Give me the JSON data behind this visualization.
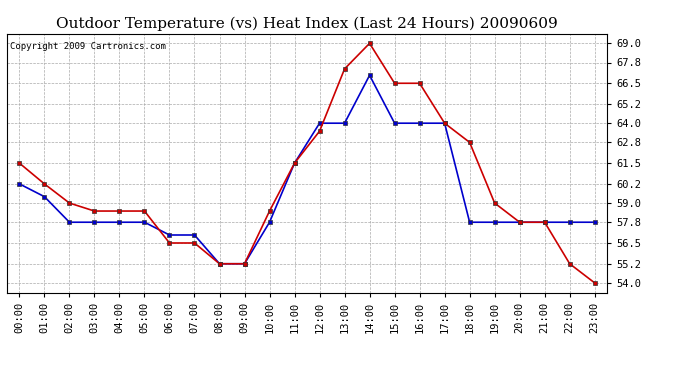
{
  "title": "Outdoor Temperature (vs) Heat Index (Last 24 Hours) 20090609",
  "copyright_text": "Copyright 2009 Cartronics.com",
  "x_labels": [
    "00:00",
    "01:00",
    "02:00",
    "03:00",
    "04:00",
    "05:00",
    "06:00",
    "07:00",
    "08:00",
    "09:00",
    "10:00",
    "11:00",
    "12:00",
    "13:00",
    "14:00",
    "15:00",
    "16:00",
    "17:00",
    "18:00",
    "19:00",
    "20:00",
    "21:00",
    "22:00",
    "23:00"
  ],
  "red_data": [
    61.5,
    60.2,
    59.0,
    58.5,
    58.5,
    58.5,
    56.5,
    56.5,
    55.2,
    55.2,
    58.5,
    61.5,
    63.5,
    67.4,
    69.0,
    66.5,
    66.5,
    64.0,
    62.8,
    59.0,
    57.8,
    57.8,
    55.2,
    54.0
  ],
  "blue_data": [
    60.2,
    59.4,
    57.8,
    57.8,
    57.8,
    57.8,
    57.0,
    57.0,
    55.2,
    55.2,
    57.8,
    61.5,
    64.0,
    64.0,
    67.0,
    64.0,
    64.0,
    64.0,
    57.8,
    57.8,
    57.8,
    57.8,
    57.8,
    57.8
  ],
  "red_color": "#cc0000",
  "blue_color": "#0000cc",
  "ylim_min": 53.4,
  "ylim_max": 69.6,
  "yticks": [
    54.0,
    55.2,
    56.5,
    57.8,
    59.0,
    60.2,
    61.5,
    62.8,
    64.0,
    65.2,
    66.5,
    67.8,
    69.0
  ],
  "bg_color": "#ffffff",
  "grid_color": "#aaaaaa",
  "title_fontsize": 11,
  "tick_fontsize": 7.5,
  "copyright_fontsize": 6.5
}
